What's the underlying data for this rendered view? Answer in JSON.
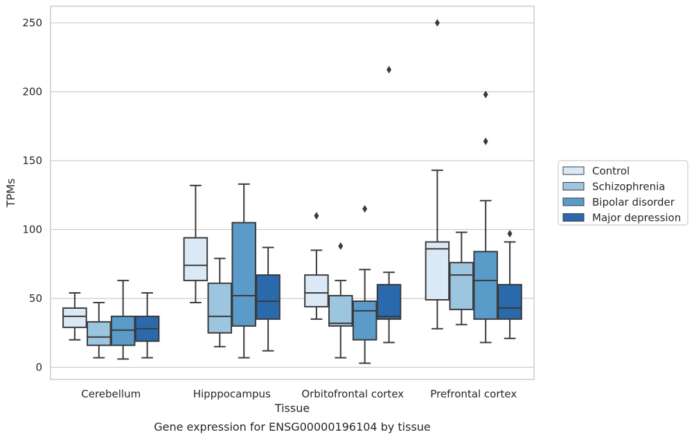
{
  "chart_data": {
    "type": "box",
    "title": "",
    "caption": "Gene expression for ENSG00000196104 by tissue",
    "xlabel": "Tissue",
    "ylabel": "TPMs",
    "ylim": [
      -8,
      263
    ],
    "yticks": [
      0,
      50,
      100,
      150,
      200,
      250
    ],
    "grid": "horizontal",
    "legend_position": "right",
    "categories": [
      "Cerebellum",
      "Hipppocampus",
      "Orbitofrontal cortex",
      "Prefrontal cortex"
    ],
    "series": [
      {
        "name": "Control",
        "color": "#dbe9f6",
        "boxes": [
          {
            "whisker_low": 20,
            "q1": 29,
            "median": 37,
            "q3": 43,
            "whisker_high": 54,
            "outliers": []
          },
          {
            "whisker_low": 47,
            "q1": 63,
            "median": 74,
            "q3": 94,
            "whisker_high": 132,
            "outliers": []
          },
          {
            "whisker_low": 35,
            "q1": 44,
            "median": 54,
            "q3": 67,
            "whisker_high": 85,
            "outliers": [
              110
            ]
          },
          {
            "whisker_low": 28,
            "q1": 49,
            "median": 86,
            "q3": 91,
            "whisker_high": 143,
            "outliers": [
              250
            ]
          }
        ]
      },
      {
        "name": "Schizophrenia",
        "color": "#9cc5e0",
        "boxes": [
          {
            "whisker_low": 7,
            "q1": 16,
            "median": 22,
            "q3": 33,
            "whisker_high": 47,
            "outliers": []
          },
          {
            "whisker_low": 15,
            "q1": 25,
            "median": 37,
            "q3": 61,
            "whisker_high": 79,
            "outliers": []
          },
          {
            "whisker_low": 7,
            "q1": 30,
            "median": 32,
            "q3": 52,
            "whisker_high": 63,
            "outliers": [
              88
            ]
          },
          {
            "whisker_low": 31,
            "q1": 42,
            "median": 67,
            "q3": 76,
            "whisker_high": 98,
            "outliers": []
          }
        ]
      },
      {
        "name": "Bipolar disorder",
        "color": "#5a9bc9",
        "boxes": [
          {
            "whisker_low": 6,
            "q1": 16,
            "median": 27,
            "q3": 37,
            "whisker_high": 63,
            "outliers": []
          },
          {
            "whisker_low": 7,
            "q1": 30,
            "median": 52,
            "q3": 105,
            "whisker_high": 133,
            "outliers": []
          },
          {
            "whisker_low": 3,
            "q1": 20,
            "median": 41,
            "q3": 48,
            "whisker_high": 71,
            "outliers": [
              115
            ]
          },
          {
            "whisker_low": 18,
            "q1": 35,
            "median": 63,
            "q3": 84,
            "whisker_high": 121,
            "outliers": [
              164,
              198
            ]
          }
        ]
      },
      {
        "name": "Major depression",
        "color": "#2a6aac",
        "boxes": [
          {
            "whisker_low": 7,
            "q1": 19,
            "median": 28,
            "q3": 37,
            "whisker_high": 54,
            "outliers": []
          },
          {
            "whisker_low": 12,
            "q1": 35,
            "median": 48,
            "q3": 67,
            "whisker_high": 87,
            "outliers": []
          },
          {
            "whisker_low": 18,
            "q1": 35,
            "median": 37,
            "q3": 60,
            "whisker_high": 69,
            "outliers": [
              216
            ]
          },
          {
            "whisker_low": 21,
            "q1": 35,
            "median": 43,
            "q3": 60,
            "whisker_high": 91,
            "outliers": [
              97
            ]
          }
        ]
      }
    ]
  }
}
